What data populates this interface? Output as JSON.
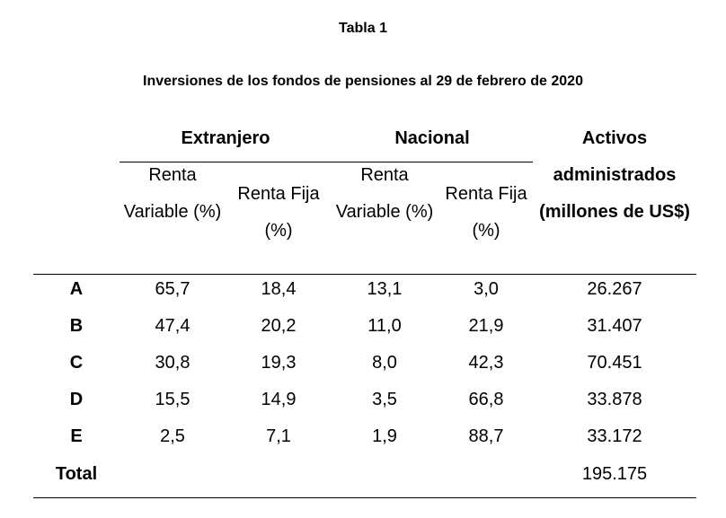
{
  "title": "Tabla 1",
  "subtitle": "Inversiones de los fondos de pensiones al 29 de febrero de 2020",
  "table": {
    "group_headers": [
      "Extranjero",
      "Nacional"
    ],
    "column_headers": [
      "Renta Variable (%)",
      "Renta Fija (%)",
      "Renta Variable (%)",
      "Renta Fija (%)"
    ],
    "total_header": "Activos administrados (millones de US$)",
    "rows": [
      [
        "A",
        "65,7",
        "18,4",
        "13,1",
        "3,0",
        "26.267"
      ],
      [
        "B",
        "47,4",
        "20,2",
        "11,0",
        "21,9",
        "31.407"
      ],
      [
        "C",
        "30,8",
        "19,3",
        "8,0",
        "42,3",
        "70.451"
      ],
      [
        "D",
        "15,5",
        "14,9",
        "3,5",
        "66,8",
        "33.878"
      ],
      [
        "E",
        "2,5",
        "7,1",
        "1,9",
        "88,7",
        "33.172"
      ]
    ],
    "total_row": {
      "label": "Total",
      "value": "195.175"
    }
  }
}
